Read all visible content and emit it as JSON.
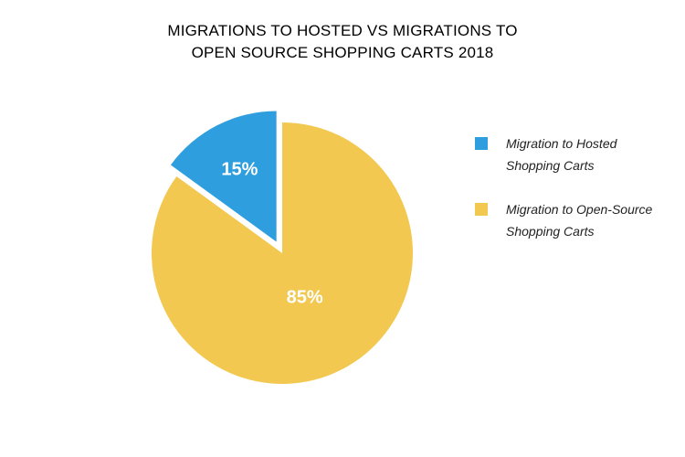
{
  "chart_data": {
    "type": "pie",
    "title_lines": [
      "MIGRATIONS TO HOSTED VS MIGRATIONS TO",
      "OPEN SOURCE SHOPPING CARTS 2018"
    ],
    "slices": [
      {
        "label_lines": [
          "Migration to Hosted",
          "Shopping Carts"
        ],
        "value": 15,
        "data_label": "15%",
        "color": "#2f9ede",
        "exploded": true
      },
      {
        "label_lines": [
          "Migration to Open-Source",
          "Shopping Carts"
        ],
        "value": 85,
        "data_label": "85%",
        "color": "#f2c850",
        "exploded": false
      }
    ],
    "legend_position": "right"
  }
}
